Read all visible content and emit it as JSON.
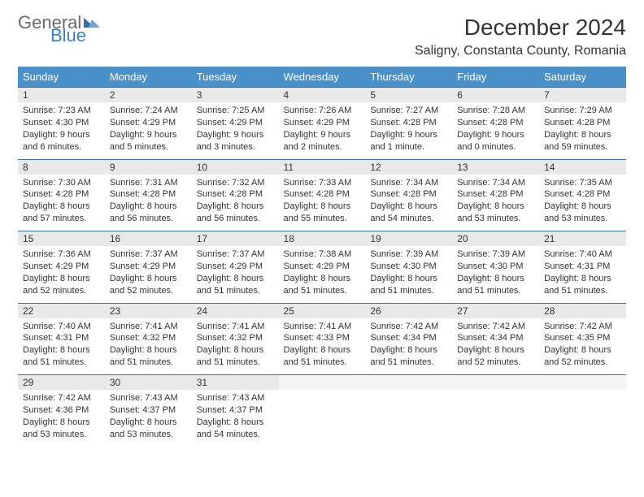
{
  "brand": {
    "word1": "General",
    "word2": "Blue"
  },
  "title": "December 2024",
  "location": "Saligny, Constanta County, Romania",
  "colors": {
    "header_bg": "#4a90c9",
    "header_text": "#ffffff",
    "daynum_bg": "#e9e9e9",
    "row_border": "#3a6fa5",
    "brand_gray": "#6a6a6a",
    "brand_blue": "#3a7fc4"
  },
  "weekdays": [
    "Sunday",
    "Monday",
    "Tuesday",
    "Wednesday",
    "Thursday",
    "Friday",
    "Saturday"
  ],
  "weeks": [
    [
      {
        "n": "1",
        "sr": "7:23 AM",
        "ss": "4:30 PM",
        "dl": "9 hours and 6 minutes."
      },
      {
        "n": "2",
        "sr": "7:24 AM",
        "ss": "4:29 PM",
        "dl": "9 hours and 5 minutes."
      },
      {
        "n": "3",
        "sr": "7:25 AM",
        "ss": "4:29 PM",
        "dl": "9 hours and 3 minutes."
      },
      {
        "n": "4",
        "sr": "7:26 AM",
        "ss": "4:29 PM",
        "dl": "9 hours and 2 minutes."
      },
      {
        "n": "5",
        "sr": "7:27 AM",
        "ss": "4:28 PM",
        "dl": "9 hours and 1 minute."
      },
      {
        "n": "6",
        "sr": "7:28 AM",
        "ss": "4:28 PM",
        "dl": "9 hours and 0 minutes."
      },
      {
        "n": "7",
        "sr": "7:29 AM",
        "ss": "4:28 PM",
        "dl": "8 hours and 59 minutes."
      }
    ],
    [
      {
        "n": "8",
        "sr": "7:30 AM",
        "ss": "4:28 PM",
        "dl": "8 hours and 57 minutes."
      },
      {
        "n": "9",
        "sr": "7:31 AM",
        "ss": "4:28 PM",
        "dl": "8 hours and 56 minutes."
      },
      {
        "n": "10",
        "sr": "7:32 AM",
        "ss": "4:28 PM",
        "dl": "8 hours and 56 minutes."
      },
      {
        "n": "11",
        "sr": "7:33 AM",
        "ss": "4:28 PM",
        "dl": "8 hours and 55 minutes."
      },
      {
        "n": "12",
        "sr": "7:34 AM",
        "ss": "4:28 PM",
        "dl": "8 hours and 54 minutes."
      },
      {
        "n": "13",
        "sr": "7:34 AM",
        "ss": "4:28 PM",
        "dl": "8 hours and 53 minutes."
      },
      {
        "n": "14",
        "sr": "7:35 AM",
        "ss": "4:28 PM",
        "dl": "8 hours and 53 minutes."
      }
    ],
    [
      {
        "n": "15",
        "sr": "7:36 AM",
        "ss": "4:29 PM",
        "dl": "8 hours and 52 minutes."
      },
      {
        "n": "16",
        "sr": "7:37 AM",
        "ss": "4:29 PM",
        "dl": "8 hours and 52 minutes."
      },
      {
        "n": "17",
        "sr": "7:37 AM",
        "ss": "4:29 PM",
        "dl": "8 hours and 51 minutes."
      },
      {
        "n": "18",
        "sr": "7:38 AM",
        "ss": "4:29 PM",
        "dl": "8 hours and 51 minutes."
      },
      {
        "n": "19",
        "sr": "7:39 AM",
        "ss": "4:30 PM",
        "dl": "8 hours and 51 minutes."
      },
      {
        "n": "20",
        "sr": "7:39 AM",
        "ss": "4:30 PM",
        "dl": "8 hours and 51 minutes."
      },
      {
        "n": "21",
        "sr": "7:40 AM",
        "ss": "4:31 PM",
        "dl": "8 hours and 51 minutes."
      }
    ],
    [
      {
        "n": "22",
        "sr": "7:40 AM",
        "ss": "4:31 PM",
        "dl": "8 hours and 51 minutes."
      },
      {
        "n": "23",
        "sr": "7:41 AM",
        "ss": "4:32 PM",
        "dl": "8 hours and 51 minutes."
      },
      {
        "n": "24",
        "sr": "7:41 AM",
        "ss": "4:32 PM",
        "dl": "8 hours and 51 minutes."
      },
      {
        "n": "25",
        "sr": "7:41 AM",
        "ss": "4:33 PM",
        "dl": "8 hours and 51 minutes."
      },
      {
        "n": "26",
        "sr": "7:42 AM",
        "ss": "4:34 PM",
        "dl": "8 hours and 51 minutes."
      },
      {
        "n": "27",
        "sr": "7:42 AM",
        "ss": "4:34 PM",
        "dl": "8 hours and 52 minutes."
      },
      {
        "n": "28",
        "sr": "7:42 AM",
        "ss": "4:35 PM",
        "dl": "8 hours and 52 minutes."
      }
    ],
    [
      {
        "n": "29",
        "sr": "7:42 AM",
        "ss": "4:36 PM",
        "dl": "8 hours and 53 minutes."
      },
      {
        "n": "30",
        "sr": "7:43 AM",
        "ss": "4:37 PM",
        "dl": "8 hours and 53 minutes."
      },
      {
        "n": "31",
        "sr": "7:43 AM",
        "ss": "4:37 PM",
        "dl": "8 hours and 54 minutes."
      },
      null,
      null,
      null,
      null
    ]
  ],
  "labels": {
    "sunrise": "Sunrise: ",
    "sunset": "Sunset: ",
    "daylight": "Daylight: "
  }
}
